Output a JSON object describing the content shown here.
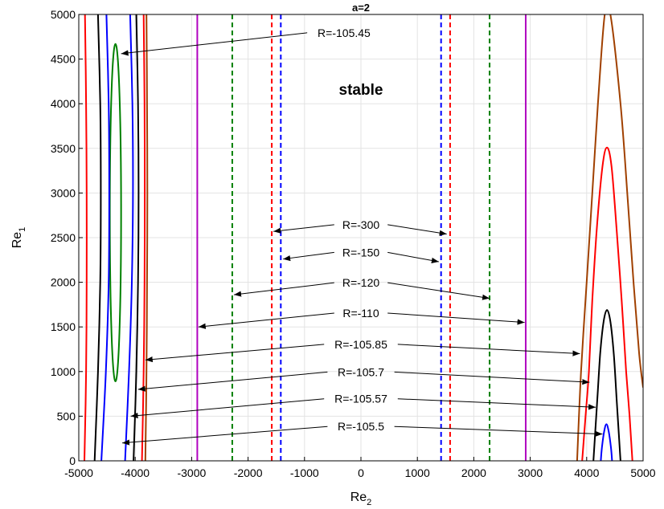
{
  "chart_data": {
    "type": "line",
    "title": "a=2",
    "xlabel": "Re",
    "xlabel_sub": "2",
    "ylabel": "Re",
    "ylabel_sub": "1",
    "xlim": [
      -5000,
      5000
    ],
    "ylim": [
      0,
      5000
    ],
    "xticks": [
      -5000,
      -4000,
      -3000,
      -2000,
      -1000,
      0,
      1000,
      2000,
      3000,
      4000,
      5000
    ],
    "yticks": [
      0,
      500,
      1000,
      1500,
      2000,
      2500,
      3000,
      3500,
      4000,
      4500,
      5000
    ],
    "grid": true,
    "region_label": {
      "text": "stable",
      "x": 0,
      "y": 4100
    },
    "colors": {
      "green": "#008000",
      "blue": "#0000ff",
      "black": "#000000",
      "red": "#ff0000",
      "brown": "#a04000",
      "magenta": "#b000c0"
    },
    "series": [
      {
        "color": "green",
        "style": "dashed",
        "kind": "vline",
        "x": [
          -2280,
          2280
        ]
      },
      {
        "color": "red",
        "style": "dashed",
        "kind": "vline",
        "x": [
          -1580,
          1580
        ]
      },
      {
        "color": "blue",
        "style": "dashed",
        "kind": "vline",
        "x": [
          -1420,
          1420
        ]
      },
      {
        "color": "magenta",
        "style": "solid",
        "kind": "vline",
        "x": [
          -2900,
          2920
        ]
      },
      {
        "color": "green",
        "style": "solid",
        "kind": "ellipse",
        "cx": -4350,
        "cy": 2780,
        "rx": 100,
        "ry": 1890
      },
      {
        "color": "blue",
        "style": "solid",
        "kind": "curve",
        "points": [
          [
            -4600,
            0
          ],
          [
            -4520,
            1000
          ],
          [
            -4470,
            2000
          ],
          [
            -4460,
            3000
          ],
          [
            -4470,
            4000
          ],
          [
            -4510,
            5000
          ]
        ]
      },
      {
        "color": "blue",
        "style": "solid",
        "kind": "curve",
        "points": [
          [
            -4180,
            0
          ],
          [
            -4110,
            1000
          ],
          [
            -4060,
            2000
          ],
          [
            -4040,
            3000
          ],
          [
            -4050,
            4000
          ],
          [
            -4090,
            5000
          ]
        ]
      },
      {
        "color": "black",
        "style": "solid",
        "kind": "curve",
        "points": [
          [
            -4720,
            0
          ],
          [
            -4660,
            1000
          ],
          [
            -4620,
            2000
          ],
          [
            -4610,
            3000
          ],
          [
            -4620,
            4000
          ],
          [
            -4660,
            5000
          ]
        ]
      },
      {
        "color": "black",
        "style": "solid",
        "kind": "curve",
        "points": [
          [
            -4030,
            0
          ],
          [
            -3980,
            1000
          ],
          [
            -3950,
            2000
          ],
          [
            -3940,
            3000
          ],
          [
            -3950,
            4000
          ],
          [
            -3980,
            5000
          ]
        ]
      },
      {
        "color": "red",
        "style": "solid",
        "kind": "curve",
        "points": [
          [
            -4900,
            0
          ],
          [
            -4870,
            1000
          ],
          [
            -4860,
            2000
          ],
          [
            -4860,
            3000
          ],
          [
            -4870,
            4000
          ],
          [
            -4890,
            5000
          ]
        ]
      },
      {
        "color": "red",
        "style": "solid",
        "kind": "curve",
        "points": [
          [
            -3880,
            0
          ],
          [
            -3850,
            1000
          ],
          [
            -3835,
            2000
          ],
          [
            -3830,
            3000
          ],
          [
            -3835,
            4000
          ],
          [
            -3850,
            5000
          ]
        ]
      },
      {
        "color": "brown",
        "style": "solid",
        "kind": "curve",
        "points": [
          [
            -3820,
            0
          ],
          [
            -3800,
            1000
          ],
          [
            -3790,
            2000
          ],
          [
            -3785,
            3000
          ],
          [
            -3790,
            4000
          ],
          [
            -3800,
            5000
          ]
        ]
      },
      {
        "color": "brown",
        "style": "solid",
        "kind": "curve",
        "points": [
          [
            3830,
            0
          ],
          [
            3900,
            1000
          ],
          [
            4000,
            2000
          ],
          [
            4100,
            3000
          ],
          [
            4200,
            4000
          ],
          [
            4320,
            5000
          ],
          [
            4420,
            5000
          ],
          [
            4600,
            4000
          ],
          [
            4720,
            3000
          ],
          [
            4830,
            2000
          ],
          [
            4930,
            1200
          ],
          [
            5000,
            820
          ]
        ]
      },
      {
        "color": "red",
        "style": "solid",
        "kind": "curve",
        "points": [
          [
            3920,
            0
          ],
          [
            3980,
            500
          ],
          [
            4040,
            1000
          ],
          [
            4100,
            1800
          ],
          [
            4180,
            2600
          ],
          [
            4280,
            3300
          ],
          [
            4360,
            3510
          ],
          [
            4440,
            3300
          ],
          [
            4530,
            2600
          ],
          [
            4620,
            1800
          ],
          [
            4700,
            1000
          ],
          [
            4760,
            500
          ],
          [
            4810,
            0
          ]
        ]
      },
      {
        "color": "black",
        "style": "solid",
        "kind": "curve",
        "points": [
          [
            4120,
            0
          ],
          [
            4150,
            300
          ],
          [
            4190,
            700
          ],
          [
            4240,
            1200
          ],
          [
            4300,
            1560
          ],
          [
            4360,
            1690
          ],
          [
            4420,
            1560
          ],
          [
            4480,
            1200
          ],
          [
            4530,
            700
          ],
          [
            4570,
            300
          ],
          [
            4600,
            0
          ]
        ]
      },
      {
        "color": "blue",
        "style": "solid",
        "kind": "curve",
        "points": [
          [
            4250,
            0
          ],
          [
            4270,
            150
          ],
          [
            4310,
            330
          ],
          [
            4350,
            410
          ],
          [
            4390,
            330
          ],
          [
            4430,
            150
          ],
          [
            4450,
            0
          ]
        ]
      }
    ],
    "annotations": [
      {
        "text": "R=-105.45",
        "tx": -300,
        "ty": 4750,
        "arrows": [
          [
            -4250,
            4560
          ]
        ]
      },
      {
        "text": "R=-300",
        "tx": 0,
        "ty": 2600,
        "arrows": [
          [
            -1550,
            2570
          ],
          [
            1520,
            2540
          ]
        ]
      },
      {
        "text": "R=-150",
        "tx": 0,
        "ty": 2290,
        "arrows": [
          [
            -1380,
            2260
          ],
          [
            1380,
            2230
          ]
        ]
      },
      {
        "text": "R=-120",
        "tx": 0,
        "ty": 1950,
        "arrows": [
          [
            -2250,
            1860
          ],
          [
            2280,
            1820
          ]
        ]
      },
      {
        "text": "R=-110",
        "tx": 0,
        "ty": 1610,
        "arrows": [
          [
            -2880,
            1500
          ],
          [
            2900,
            1550
          ]
        ]
      },
      {
        "text": "R=-105.85",
        "tx": 0,
        "ty": 1260,
        "arrows": [
          [
            -3820,
            1130
          ],
          [
            3880,
            1200
          ]
        ]
      },
      {
        "text": "R=-105.7",
        "tx": 0,
        "ty": 950,
        "arrows": [
          [
            -3950,
            800
          ],
          [
            4050,
            880
          ]
        ]
      },
      {
        "text": "R=-105.57",
        "tx": 0,
        "ty": 650,
        "arrows": [
          [
            -4080,
            500
          ],
          [
            4160,
            600
          ]
        ]
      },
      {
        "text": "R=-105.5",
        "tx": 0,
        "ty": 340,
        "arrows": [
          [
            -4230,
            200
          ],
          [
            4280,
            300
          ]
        ]
      }
    ]
  }
}
